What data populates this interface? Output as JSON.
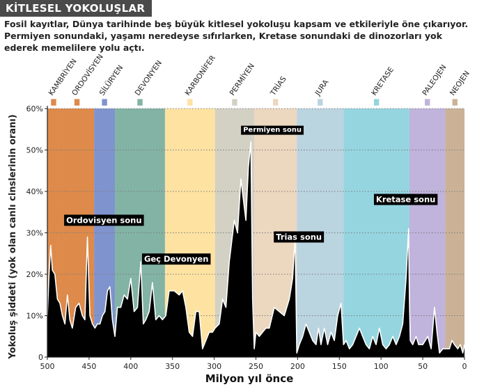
{
  "page": {
    "title": "KİTLESEL YOKOLUŞLAR",
    "intro": "Fosil kayıtlar, Dünya tarihinde beş büyük kitlesel yokoluşu kapsam ve etkileriyle öne çıkarıyor. Permiyen sonundaki, yaşamı neredeyse sıfırlarken, Kretase sonundaki de dinozorları yok ederek  memelilere yolu açtı."
  },
  "chart_data": {
    "type": "area",
    "title": "KİTLESEL YOKOLUŞLAR",
    "xlabel": "Milyon yıl önce",
    "ylabel": "Yokoluş şiddeti (yok olan canlı cinslerinin oranı)",
    "xlim": [
      500,
      0
    ],
    "ylim": [
      0,
      60
    ],
    "x_ticks": [
      500,
      450,
      400,
      350,
      300,
      250,
      200,
      150,
      100,
      50,
      0
    ],
    "y_ticks": [
      0,
      10,
      20,
      30,
      40,
      50,
      60
    ],
    "y_tick_labels": [
      "0",
      "10%",
      "20%",
      "30%",
      "40%",
      "50%",
      "60%"
    ],
    "grid": true,
    "periods": [
      {
        "name": "KAMBRİYEN",
        "start": 500,
        "end": 485,
        "color": "#dd8a4b"
      },
      {
        "name": "ORDOVİSYEN",
        "start": 485,
        "end": 444,
        "color": "#dd8a4b"
      },
      {
        "name": "SİLÜRYEN",
        "start": 444,
        "end": 419,
        "color": "#7f93ce"
      },
      {
        "name": "DEVONYEN",
        "start": 419,
        "end": 359,
        "color": "#82b3a4"
      },
      {
        "name": "KARBONİFER",
        "start": 359,
        "end": 299,
        "color": "#fde2a2"
      },
      {
        "name": "PERMİYEN",
        "start": 299,
        "end": 252,
        "color": "#d3d1c4"
      },
      {
        "name": "TRİAS",
        "start": 252,
        "end": 201,
        "color": "#ecd7bf"
      },
      {
        "name": "JURA",
        "start": 201,
        "end": 145,
        "color": "#bad4e0"
      },
      {
        "name": "KRETASE",
        "start": 145,
        "end": 66,
        "color": "#95d5e0"
      },
      {
        "name": "PALEOJEN",
        "start": 66,
        "end": 23,
        "color": "#c0b3dc"
      },
      {
        "name": "NEOJEN",
        "start": 23,
        "end": 0,
        "color": "#cbb296"
      }
    ],
    "series": [
      {
        "x": [
          500,
          498,
          496,
          494,
          491,
          488,
          485,
          482,
          479,
          476,
          473,
          470,
          466,
          462,
          458,
          455,
          452,
          449,
          446,
          443,
          440,
          437,
          434,
          431,
          428,
          425,
          422,
          419,
          416,
          412,
          408,
          404,
          400,
          396,
          392,
          388,
          385,
          382,
          378,
          374,
          370,
          366,
          362,
          358,
          354,
          348,
          342,
          338,
          334,
          330,
          326,
          322,
          318,
          314,
          310,
          306,
          302,
          299,
          294,
          290,
          286,
          282,
          276,
          272,
          268,
          265,
          262,
          259,
          256,
          254,
          252,
          250,
          246,
          242,
          238,
          234,
          228,
          222,
          216,
          210,
          206,
          203,
          201,
          198,
          194,
          190,
          186,
          182,
          178,
          175,
          172,
          168,
          164,
          160,
          156,
          152,
          148,
          145,
          142,
          138,
          134,
          130,
          126,
          122,
          118,
          114,
          110,
          106,
          102,
          98,
          94,
          90,
          86,
          82,
          78,
          74,
          70,
          67,
          66,
          65,
          62,
          58,
          55,
          50,
          44,
          40,
          36,
          33,
          30,
          26,
          22,
          18,
          15,
          12,
          8,
          5,
          2,
          0
        ],
        "y": [
          10,
          20,
          27,
          21,
          20,
          14,
          13,
          10,
          8,
          15,
          9,
          7,
          12,
          13,
          10,
          9,
          29,
          10,
          8,
          7,
          8,
          8,
          10,
          11,
          16,
          17,
          9,
          5,
          12,
          12,
          15,
          14,
          19,
          11,
          12,
          23,
          8,
          9,
          11,
          18,
          9,
          10,
          9,
          10,
          16,
          16,
          15,
          16,
          12,
          6,
          5,
          11,
          11,
          2,
          4,
          6,
          6,
          7,
          8,
          14,
          12,
          23,
          33,
          30,
          43,
          38,
          33,
          46,
          52,
          14,
          2,
          6,
          5,
          6,
          7,
          7,
          12,
          11,
          10,
          14,
          19,
          29,
          1,
          3,
          5,
          8,
          6,
          4,
          3,
          7,
          3,
          7,
          3,
          6,
          4,
          10,
          13,
          3,
          4,
          2,
          3,
          5,
          7,
          5,
          3,
          2,
          5,
          3,
          7,
          3,
          2,
          3,
          5,
          3,
          5,
          8,
          19,
          31,
          14,
          4,
          3,
          5,
          3,
          3,
          5,
          2,
          12,
          6,
          1,
          2,
          2,
          2,
          4,
          3,
          2,
          3,
          1,
          3
        ]
      }
    ],
    "annotations": [
      {
        "text": "Ordovisyen sonu",
        "x": 444,
        "y": 29
      },
      {
        "text": "Geç Devonyen",
        "x": 374,
        "y": 23
      },
      {
        "text": "Permiyen sonu",
        "x": 252,
        "y": 52
      },
      {
        "text": "Trias sonu",
        "x": 201,
        "y": 29
      },
      {
        "text": "Kretase sonu",
        "x": 66,
        "y": 31
      }
    ],
    "colors": {
      "area": "#000000",
      "outline": "#ffffff",
      "grid": "#7a7a7a",
      "label_bg": "#000000"
    }
  }
}
